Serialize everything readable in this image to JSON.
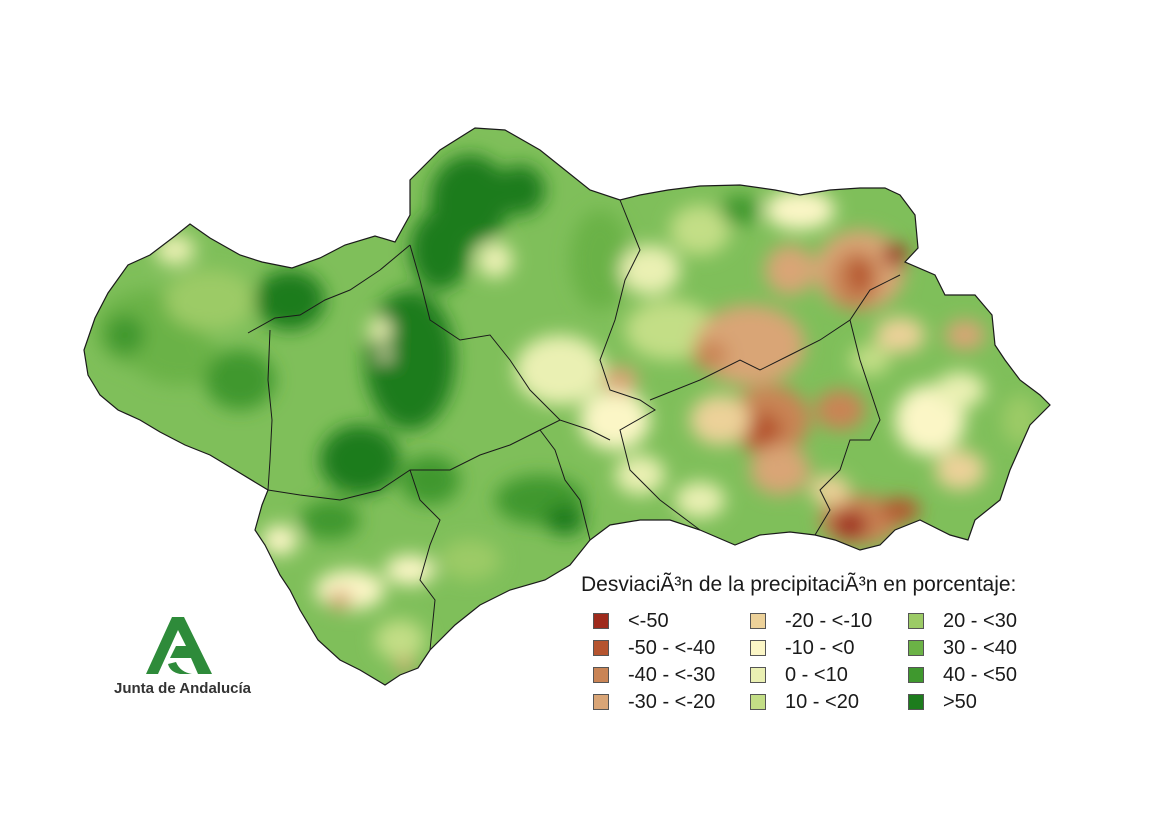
{
  "map": {
    "region": "Andalucía",
    "border_color": "#1a1a1a",
    "base_color": "#7fbf5a"
  },
  "legend": {
    "title": "DesviaciÃ³n de la precipitaciÃ³n en porcentaje:",
    "items": [
      {
        "label": "<-50",
        "color": "#9e2a1c"
      },
      {
        "label": "-50 - <-40",
        "color": "#b5542f"
      },
      {
        "label": "-40 - <-30",
        "color": "#c98455"
      },
      {
        "label": "-30 - <-20",
        "color": "#d9a576"
      },
      {
        "label": "-20 - <-10",
        "color": "#ecd199"
      },
      {
        "label": "-10 - <0",
        "color": "#fbf6c6"
      },
      {
        "label": "0 - <10",
        "color": "#eaf0b3"
      },
      {
        "label": "10 - <20",
        "color": "#c3de86"
      },
      {
        "label": "20 - <30",
        "color": "#9ccb66"
      },
      {
        "label": "30 - <40",
        "color": "#6bb246"
      },
      {
        "label": "40 - <50",
        "color": "#3f982e"
      },
      {
        "label": ">50",
        "color": "#1d7c1d"
      }
    ]
  },
  "logo": {
    "text": "Junta de Andalucía",
    "color": "#2e8b3a",
    "icon": "junta-andalucia-logo-icon"
  }
}
